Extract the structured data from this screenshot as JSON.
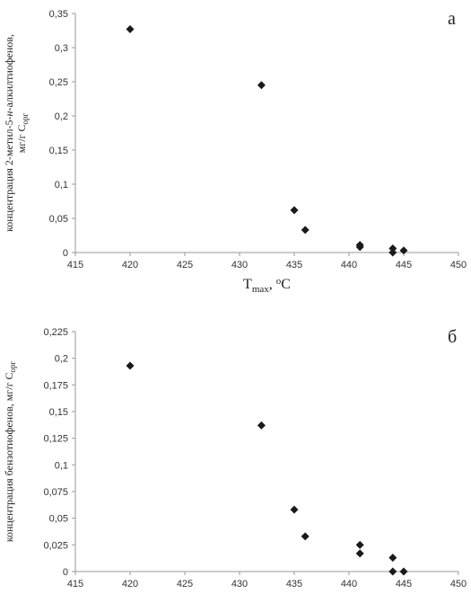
{
  "chart_data": [
    {
      "type": "scatter",
      "annotation": "а",
      "color": "#1a1a1a",
      "x_label": [
        "T",
        "max",
        ", ",
        "o",
        "C"
      ],
      "y_label": [
        [
          "концентрация 2-метил-5-",
          "н",
          "-алкилтиофенов,"
        ],
        [
          "мг/г С",
          "орг"
        ]
      ],
      "x": [
        420,
        432,
        435,
        436,
        441,
        441,
        444,
        444,
        445
      ],
      "values": [
        0.327,
        0.245,
        0.062,
        0.033,
        0.011,
        0.008,
        0.006,
        0.0,
        0.003
      ],
      "xlim": [
        415,
        450
      ],
      "xticks": [
        415,
        420,
        425,
        430,
        435,
        440,
        445,
        450
      ],
      "ylim": [
        0,
        0.35
      ],
      "yticks": [
        0,
        {
          "value": 0.05,
          "label": "0,05"
        },
        {
          "value": 0.1,
          "label": "0,1"
        },
        {
          "value": 0.15,
          "label": "0,15"
        },
        {
          "value": 0.2,
          "label": "0,2"
        },
        {
          "value": 0.25,
          "label": "0,25"
        },
        {
          "value": 0.3,
          "label": "0,3"
        },
        {
          "value": 0.35,
          "label": "0,35"
        }
      ]
    },
    {
      "type": "scatter",
      "annotation": "б",
      "color": "#1a1a1a",
      "y_label": [
        [
          "концентрация бензотиофенов, мг/г С",
          "орг"
        ]
      ],
      "x": [
        420,
        432,
        435,
        436,
        441,
        441,
        444,
        444,
        445
      ],
      "values": [
        0.193,
        0.137,
        0.058,
        0.033,
        0.025,
        0.017,
        0.013,
        0.0,
        0.0
      ],
      "xlim": [
        415,
        450
      ],
      "xticks": [
        415,
        420,
        425,
        430,
        435,
        440,
        445,
        450
      ],
      "ylim": [
        0,
        0.225
      ],
      "yticks": [
        0,
        {
          "value": 0.025,
          "label": "0,025"
        },
        {
          "value": 0.05,
          "label": "0,05"
        },
        {
          "value": 0.075,
          "label": "0,075"
        },
        {
          "value": 0.1,
          "label": "0,1"
        },
        {
          "value": 0.125,
          "label": "0,125"
        },
        {
          "value": 0.15,
          "label": "0,15"
        },
        {
          "value": 0.175,
          "label": "0,175"
        },
        {
          "value": 0.2,
          "label": "0,2"
        },
        {
          "value": 0.225,
          "label": "0,225"
        }
      ]
    }
  ]
}
